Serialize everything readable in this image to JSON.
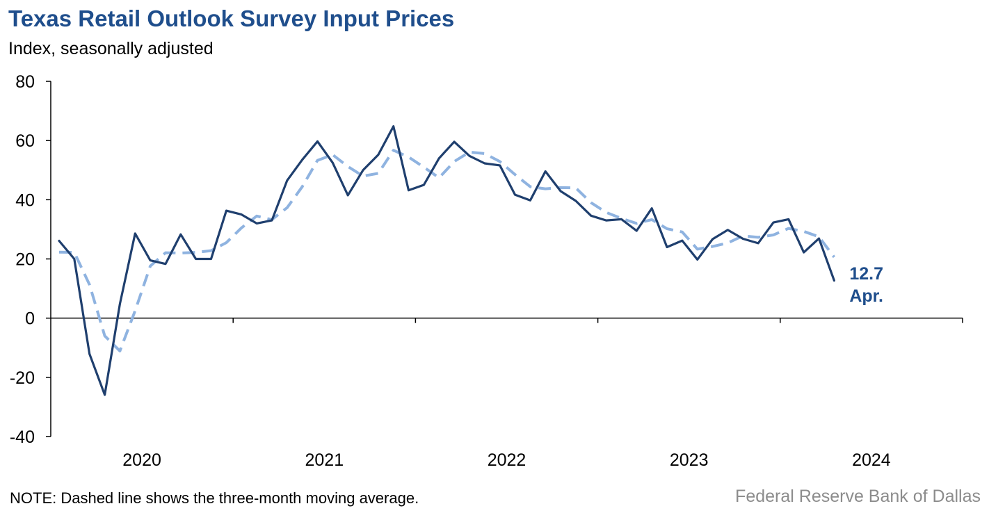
{
  "title": "Texas Retail Outlook Survey Input Prices",
  "subtitle": "Index, seasonally adjusted",
  "note": "NOTE: Dashed line shows the three-month moving average.",
  "source": "Federal Reserve Bank of Dallas",
  "colors": {
    "title": "#1f4e8c",
    "series_main": "#1f3f6e",
    "series_ma": "#8fb3e0",
    "axis": "#000000",
    "source": "#8c8c8c"
  },
  "chart_data": {
    "type": "line",
    "title": "Texas Retail Outlook Survey Input Prices",
    "ylabel": "Index, seasonally adjusted",
    "xlabel": "",
    "ylim": [
      -40,
      80
    ],
    "yticks": [
      -40,
      -20,
      0,
      20,
      40,
      60,
      80
    ],
    "grid": false,
    "x_start": "2020-01",
    "x_end": "2024-12",
    "xtick_labels": [
      "2020",
      "2021",
      "2022",
      "2023",
      "2024"
    ],
    "annotation": {
      "value": "12.7",
      "label": "Apr."
    },
    "series": [
      {
        "style": "solid",
        "x": [
          "2020-01",
          "2020-02",
          "2020-03",
          "2020-04",
          "2020-05",
          "2020-06",
          "2020-07",
          "2020-08",
          "2020-09",
          "2020-10",
          "2020-11",
          "2020-12",
          "2021-01",
          "2021-02",
          "2021-03",
          "2021-04",
          "2021-05",
          "2021-06",
          "2021-07",
          "2021-08",
          "2021-09",
          "2021-10",
          "2021-11",
          "2021-12",
          "2022-01",
          "2022-02",
          "2022-03",
          "2022-04",
          "2022-05",
          "2022-06",
          "2022-07",
          "2022-08",
          "2022-09",
          "2022-10",
          "2022-11",
          "2022-12",
          "2023-01",
          "2023-02",
          "2023-03",
          "2023-04",
          "2023-05",
          "2023-06",
          "2023-07",
          "2023-08",
          "2023-09",
          "2023-10",
          "2023-11",
          "2023-12",
          "2024-01",
          "2024-02",
          "2024-03",
          "2024-04"
        ],
        "values": [
          26.1,
          20.0,
          -12.1,
          -25.9,
          4.8,
          28.6,
          19.5,
          18.3,
          28.3,
          20.0,
          20.0,
          36.3,
          35.0,
          32.0,
          33.0,
          46.5,
          53.5,
          59.7,
          52.5,
          41.5,
          50.0,
          55.2,
          64.8,
          43.2,
          45.0,
          54.0,
          59.6,
          54.8,
          52.3,
          51.6,
          41.7,
          39.8,
          49.6,
          42.9,
          39.6,
          34.6,
          33.0,
          33.4,
          29.5,
          37.1,
          24.0,
          26.2,
          19.8,
          26.7,
          29.8,
          26.8,
          25.3,
          32.3,
          33.4,
          22.2,
          26.9,
          12.7
        ]
      },
      {
        "style": "dashed",
        "x": [
          "2020-01",
          "2020-02",
          "2020-03",
          "2020-04",
          "2020-05",
          "2020-06",
          "2020-07",
          "2020-08",
          "2020-09",
          "2020-10",
          "2020-11",
          "2020-12",
          "2021-01",
          "2021-02",
          "2021-03",
          "2021-04",
          "2021-05",
          "2021-06",
          "2021-07",
          "2021-08",
          "2021-09",
          "2021-10",
          "2021-11",
          "2021-12",
          "2022-01",
          "2022-02",
          "2022-03",
          "2022-04",
          "2022-05",
          "2022-06",
          "2022-07",
          "2022-08",
          "2022-09",
          "2022-10",
          "2022-11",
          "2022-12",
          "2023-01",
          "2023-02",
          "2023-03",
          "2023-04",
          "2023-05",
          "2023-06",
          "2023-07",
          "2023-08",
          "2023-09",
          "2023-10",
          "2023-11",
          "2023-12",
          "2024-01",
          "2024-02",
          "2024-03",
          "2024-04"
        ],
        "values": [
          22.3,
          22.2,
          11.3,
          -6.0,
          -11.1,
          2.5,
          17.6,
          22.1,
          22.0,
          22.2,
          22.8,
          25.5,
          30.5,
          34.5,
          33.3,
          37.3,
          44.4,
          53.3,
          55.2,
          51.2,
          48.0,
          48.9,
          56.7,
          54.4,
          51.0,
          47.4,
          52.9,
          56.1,
          55.6,
          52.9,
          48.5,
          44.4,
          43.7,
          44.1,
          44.0,
          39.0,
          35.7,
          33.7,
          32.0,
          33.3,
          30.2,
          29.1,
          23.3,
          24.2,
          25.4,
          27.8,
          27.3,
          28.1,
          30.3,
          29.3,
          27.5,
          20.6
        ]
      }
    ]
  }
}
